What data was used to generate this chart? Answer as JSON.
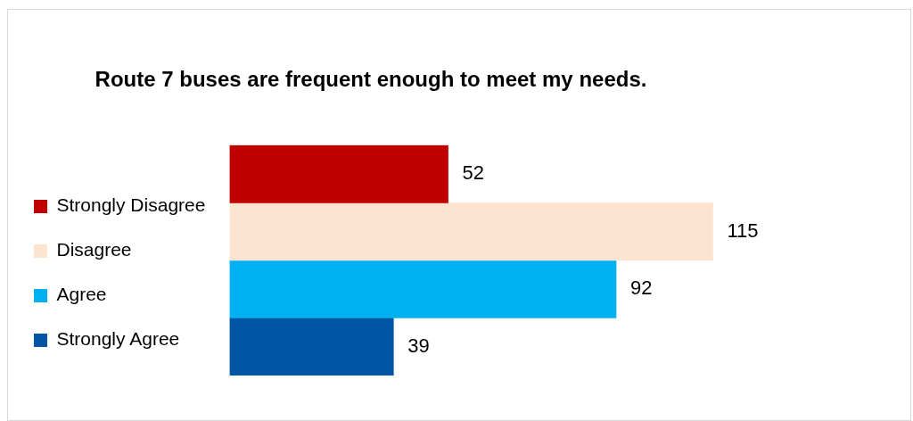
{
  "chart_data": {
    "type": "bar",
    "orientation": "horizontal",
    "title": "Route 7 buses are frequent enough to meet my needs.",
    "categories": [
      null
    ],
    "series": [
      {
        "name": "Strongly Disagree",
        "color": "#c00000",
        "values": [
          52
        ]
      },
      {
        "name": "Disagree",
        "color": "#fde4d0",
        "values": [
          115
        ]
      },
      {
        "name": "Agree",
        "color": "#00b0f0",
        "values": [
          92
        ]
      },
      {
        "name": "Strongly Agree",
        "color": "#0055a4",
        "values": [
          39
        ]
      }
    ],
    "data_labels": true,
    "legend": "left",
    "grid": false,
    "tick_labels": false
  }
}
